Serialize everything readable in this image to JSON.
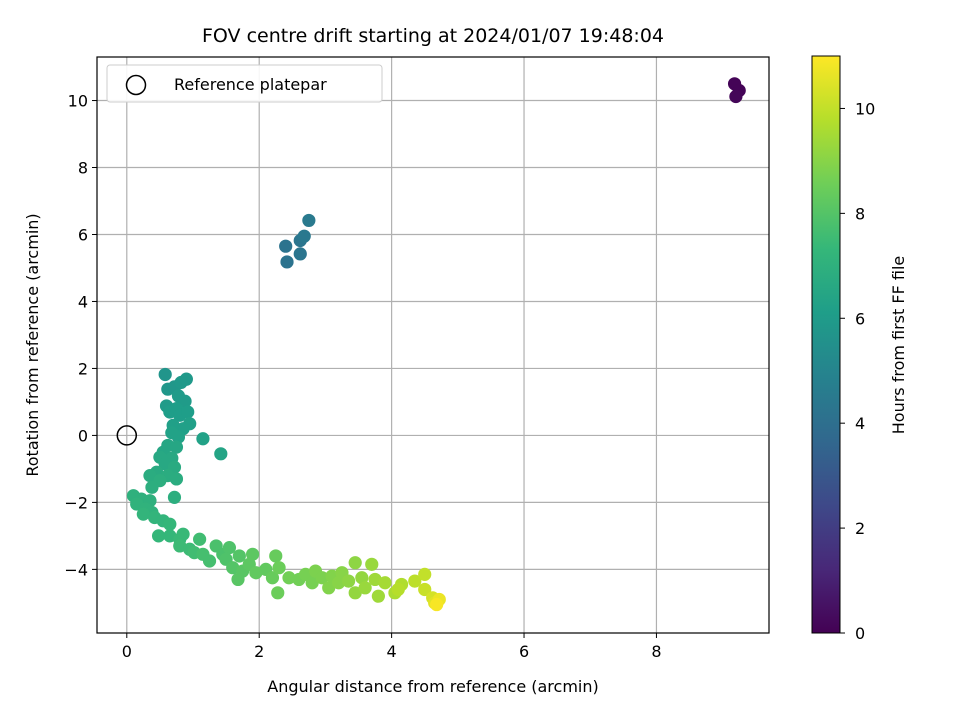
{
  "chart_data": {
    "type": "scatter",
    "title": "FOV centre drift starting at 2024/01/07 19:48:04",
    "xlabel": "Angular distance from reference (arcmin)",
    "ylabel": "Rotation from reference (arcmin)",
    "xlim": [
      -0.45,
      9.7
    ],
    "ylim": [
      -5.9,
      11.3
    ],
    "xticks": [
      0,
      2,
      4,
      6,
      8
    ],
    "yticks": [
      -4,
      -2,
      0,
      2,
      4,
      6,
      8,
      10
    ],
    "grid": true,
    "legend": {
      "placement": "upper-left",
      "entries": [
        "Reference platepar"
      ]
    },
    "reference_point": {
      "x": 0,
      "y": 0
    },
    "colorbar": {
      "label": "Hours from first FF file",
      "range": [
        0,
        11
      ],
      "ticks": [
        0,
        2,
        4,
        6,
        8,
        10
      ],
      "colormap": "viridis"
    },
    "points": [
      {
        "x": 9.18,
        "y": 10.5,
        "c": 0.1
      },
      {
        "x": 9.25,
        "y": 10.3,
        "c": 0.1
      },
      {
        "x": 9.2,
        "y": 10.12,
        "c": 0.15
      },
      {
        "x": 2.4,
        "y": 5.65,
        "c": 4.2
      },
      {
        "x": 2.42,
        "y": 5.18,
        "c": 4.2
      },
      {
        "x": 2.62,
        "y": 5.42,
        "c": 4.3
      },
      {
        "x": 2.62,
        "y": 5.82,
        "c": 4.3
      },
      {
        "x": 2.68,
        "y": 5.95,
        "c": 4.4
      },
      {
        "x": 2.75,
        "y": 6.42,
        "c": 4.5
      },
      {
        "x": 0.58,
        "y": 1.82,
        "c": 5.7
      },
      {
        "x": 0.62,
        "y": 1.38,
        "c": 5.8
      },
      {
        "x": 0.72,
        "y": 1.45,
        "c": 5.8
      },
      {
        "x": 0.82,
        "y": 1.58,
        "c": 5.9
      },
      {
        "x": 0.9,
        "y": 1.68,
        "c": 5.9
      },
      {
        "x": 0.78,
        "y": 1.18,
        "c": 6.0
      },
      {
        "x": 0.88,
        "y": 1.02,
        "c": 6.0
      },
      {
        "x": 0.6,
        "y": 0.88,
        "c": 6.0
      },
      {
        "x": 0.65,
        "y": 0.7,
        "c": 6.1
      },
      {
        "x": 0.75,
        "y": 0.8,
        "c": 6.1
      },
      {
        "x": 0.8,
        "y": 0.6,
        "c": 6.1
      },
      {
        "x": 0.92,
        "y": 0.7,
        "c": 6.1
      },
      {
        "x": 0.95,
        "y": 0.35,
        "c": 6.2
      },
      {
        "x": 0.85,
        "y": 0.2,
        "c": 6.2
      },
      {
        "x": 0.7,
        "y": 0.3,
        "c": 6.2
      },
      {
        "x": 0.68,
        "y": 0.08,
        "c": 6.3
      },
      {
        "x": 0.78,
        "y": -0.05,
        "c": 6.3
      },
      {
        "x": 1.15,
        "y": -0.1,
        "c": 6.3
      },
      {
        "x": 1.42,
        "y": -0.55,
        "c": 6.4
      },
      {
        "x": 0.62,
        "y": -0.3,
        "c": 6.5
      },
      {
        "x": 0.75,
        "y": -0.35,
        "c": 6.5
      },
      {
        "x": 0.55,
        "y": -0.5,
        "c": 6.5
      },
      {
        "x": 0.5,
        "y": -0.65,
        "c": 6.6
      },
      {
        "x": 0.68,
        "y": -0.68,
        "c": 6.6
      },
      {
        "x": 0.58,
        "y": -0.85,
        "c": 6.6
      },
      {
        "x": 0.72,
        "y": -0.95,
        "c": 6.7
      },
      {
        "x": 0.45,
        "y": -1.1,
        "c": 6.7
      },
      {
        "x": 0.35,
        "y": -1.2,
        "c": 6.8
      },
      {
        "x": 0.62,
        "y": -1.2,
        "c": 6.8
      },
      {
        "x": 0.75,
        "y": -1.3,
        "c": 6.8
      },
      {
        "x": 0.5,
        "y": -1.35,
        "c": 6.9
      },
      {
        "x": 0.38,
        "y": -1.55,
        "c": 6.9
      },
      {
        "x": 0.72,
        "y": -1.85,
        "c": 6.9
      },
      {
        "x": 0.1,
        "y": -1.8,
        "c": 7.0
      },
      {
        "x": 0.22,
        "y": -1.9,
        "c": 7.0
      },
      {
        "x": 0.35,
        "y": -1.95,
        "c": 7.0
      },
      {
        "x": 0.15,
        "y": -2.05,
        "c": 7.1
      },
      {
        "x": 0.28,
        "y": -2.2,
        "c": 7.1
      },
      {
        "x": 0.38,
        "y": -2.3,
        "c": 7.1
      },
      {
        "x": 0.25,
        "y": -2.35,
        "c": 7.2
      },
      {
        "x": 0.42,
        "y": -2.45,
        "c": 7.2
      },
      {
        "x": 0.55,
        "y": -2.55,
        "c": 7.2
      },
      {
        "x": 0.65,
        "y": -2.65,
        "c": 7.3
      },
      {
        "x": 0.48,
        "y": -3.0,
        "c": 7.3
      },
      {
        "x": 0.65,
        "y": -3.0,
        "c": 7.3
      },
      {
        "x": 0.8,
        "y": -3.1,
        "c": 7.4
      },
      {
        "x": 0.85,
        "y": -2.95,
        "c": 7.4
      },
      {
        "x": 0.8,
        "y": -3.3,
        "c": 7.5
      },
      {
        "x": 0.95,
        "y": -3.4,
        "c": 7.5
      },
      {
        "x": 1.1,
        "y": -3.1,
        "c": 7.6
      },
      {
        "x": 1.02,
        "y": -3.5,
        "c": 7.6
      },
      {
        "x": 1.15,
        "y": -3.55,
        "c": 7.7
      },
      {
        "x": 1.25,
        "y": -3.75,
        "c": 7.7
      },
      {
        "x": 1.35,
        "y": -3.3,
        "c": 7.8
      },
      {
        "x": 1.45,
        "y": -3.55,
        "c": 7.8
      },
      {
        "x": 1.55,
        "y": -3.35,
        "c": 7.9
      },
      {
        "x": 1.5,
        "y": -3.7,
        "c": 7.9
      },
      {
        "x": 1.6,
        "y": -3.95,
        "c": 8.0
      },
      {
        "x": 1.7,
        "y": -3.6,
        "c": 8.0
      },
      {
        "x": 1.75,
        "y": -4.05,
        "c": 8.1
      },
      {
        "x": 1.68,
        "y": -4.3,
        "c": 8.1
      },
      {
        "x": 1.85,
        "y": -3.85,
        "c": 8.2
      },
      {
        "x": 1.9,
        "y": -3.55,
        "c": 8.2
      },
      {
        "x": 1.95,
        "y": -4.1,
        "c": 8.3
      },
      {
        "x": 2.1,
        "y": -4.0,
        "c": 8.3
      },
      {
        "x": 2.2,
        "y": -4.25,
        "c": 8.4
      },
      {
        "x": 2.25,
        "y": -3.6,
        "c": 8.4
      },
      {
        "x": 2.3,
        "y": -3.95,
        "c": 8.5
      },
      {
        "x": 2.28,
        "y": -4.7,
        "c": 8.5
      },
      {
        "x": 2.45,
        "y": -4.25,
        "c": 8.6
      },
      {
        "x": 2.6,
        "y": -4.3,
        "c": 8.6
      },
      {
        "x": 2.7,
        "y": -4.15,
        "c": 8.7
      },
      {
        "x": 2.8,
        "y": -4.4,
        "c": 8.7
      },
      {
        "x": 2.85,
        "y": -4.05,
        "c": 8.8
      },
      {
        "x": 2.95,
        "y": -4.25,
        "c": 8.8
      },
      {
        "x": 3.05,
        "y": -4.55,
        "c": 8.9
      },
      {
        "x": 3.1,
        "y": -4.2,
        "c": 8.9
      },
      {
        "x": 3.2,
        "y": -4.4,
        "c": 9.0
      },
      {
        "x": 3.25,
        "y": -4.1,
        "c": 9.0
      },
      {
        "x": 3.35,
        "y": -4.35,
        "c": 9.1
      },
      {
        "x": 3.45,
        "y": -3.8,
        "c": 9.1
      },
      {
        "x": 3.45,
        "y": -4.7,
        "c": 9.2
      },
      {
        "x": 3.55,
        "y": -4.25,
        "c": 9.2
      },
      {
        "x": 3.6,
        "y": -4.55,
        "c": 9.3
      },
      {
        "x": 3.7,
        "y": -3.85,
        "c": 9.3
      },
      {
        "x": 3.75,
        "y": -4.3,
        "c": 9.4
      },
      {
        "x": 3.8,
        "y": -4.8,
        "c": 9.4
      },
      {
        "x": 3.9,
        "y": -4.4,
        "c": 9.5
      },
      {
        "x": 4.05,
        "y": -4.7,
        "c": 9.6
      },
      {
        "x": 4.15,
        "y": -4.45,
        "c": 9.7
      },
      {
        "x": 4.1,
        "y": -4.6,
        "c": 9.8
      },
      {
        "x": 4.35,
        "y": -4.35,
        "c": 9.9
      },
      {
        "x": 4.5,
        "y": -4.15,
        "c": 10.0
      },
      {
        "x": 4.5,
        "y": -4.6,
        "c": 10.1
      },
      {
        "x": 4.62,
        "y": -4.85,
        "c": 10.3
      },
      {
        "x": 4.65,
        "y": -5.0,
        "c": 10.5
      },
      {
        "x": 4.72,
        "y": -4.9,
        "c": 10.7
      },
      {
        "x": 4.68,
        "y": -5.05,
        "c": 10.9
      }
    ]
  }
}
